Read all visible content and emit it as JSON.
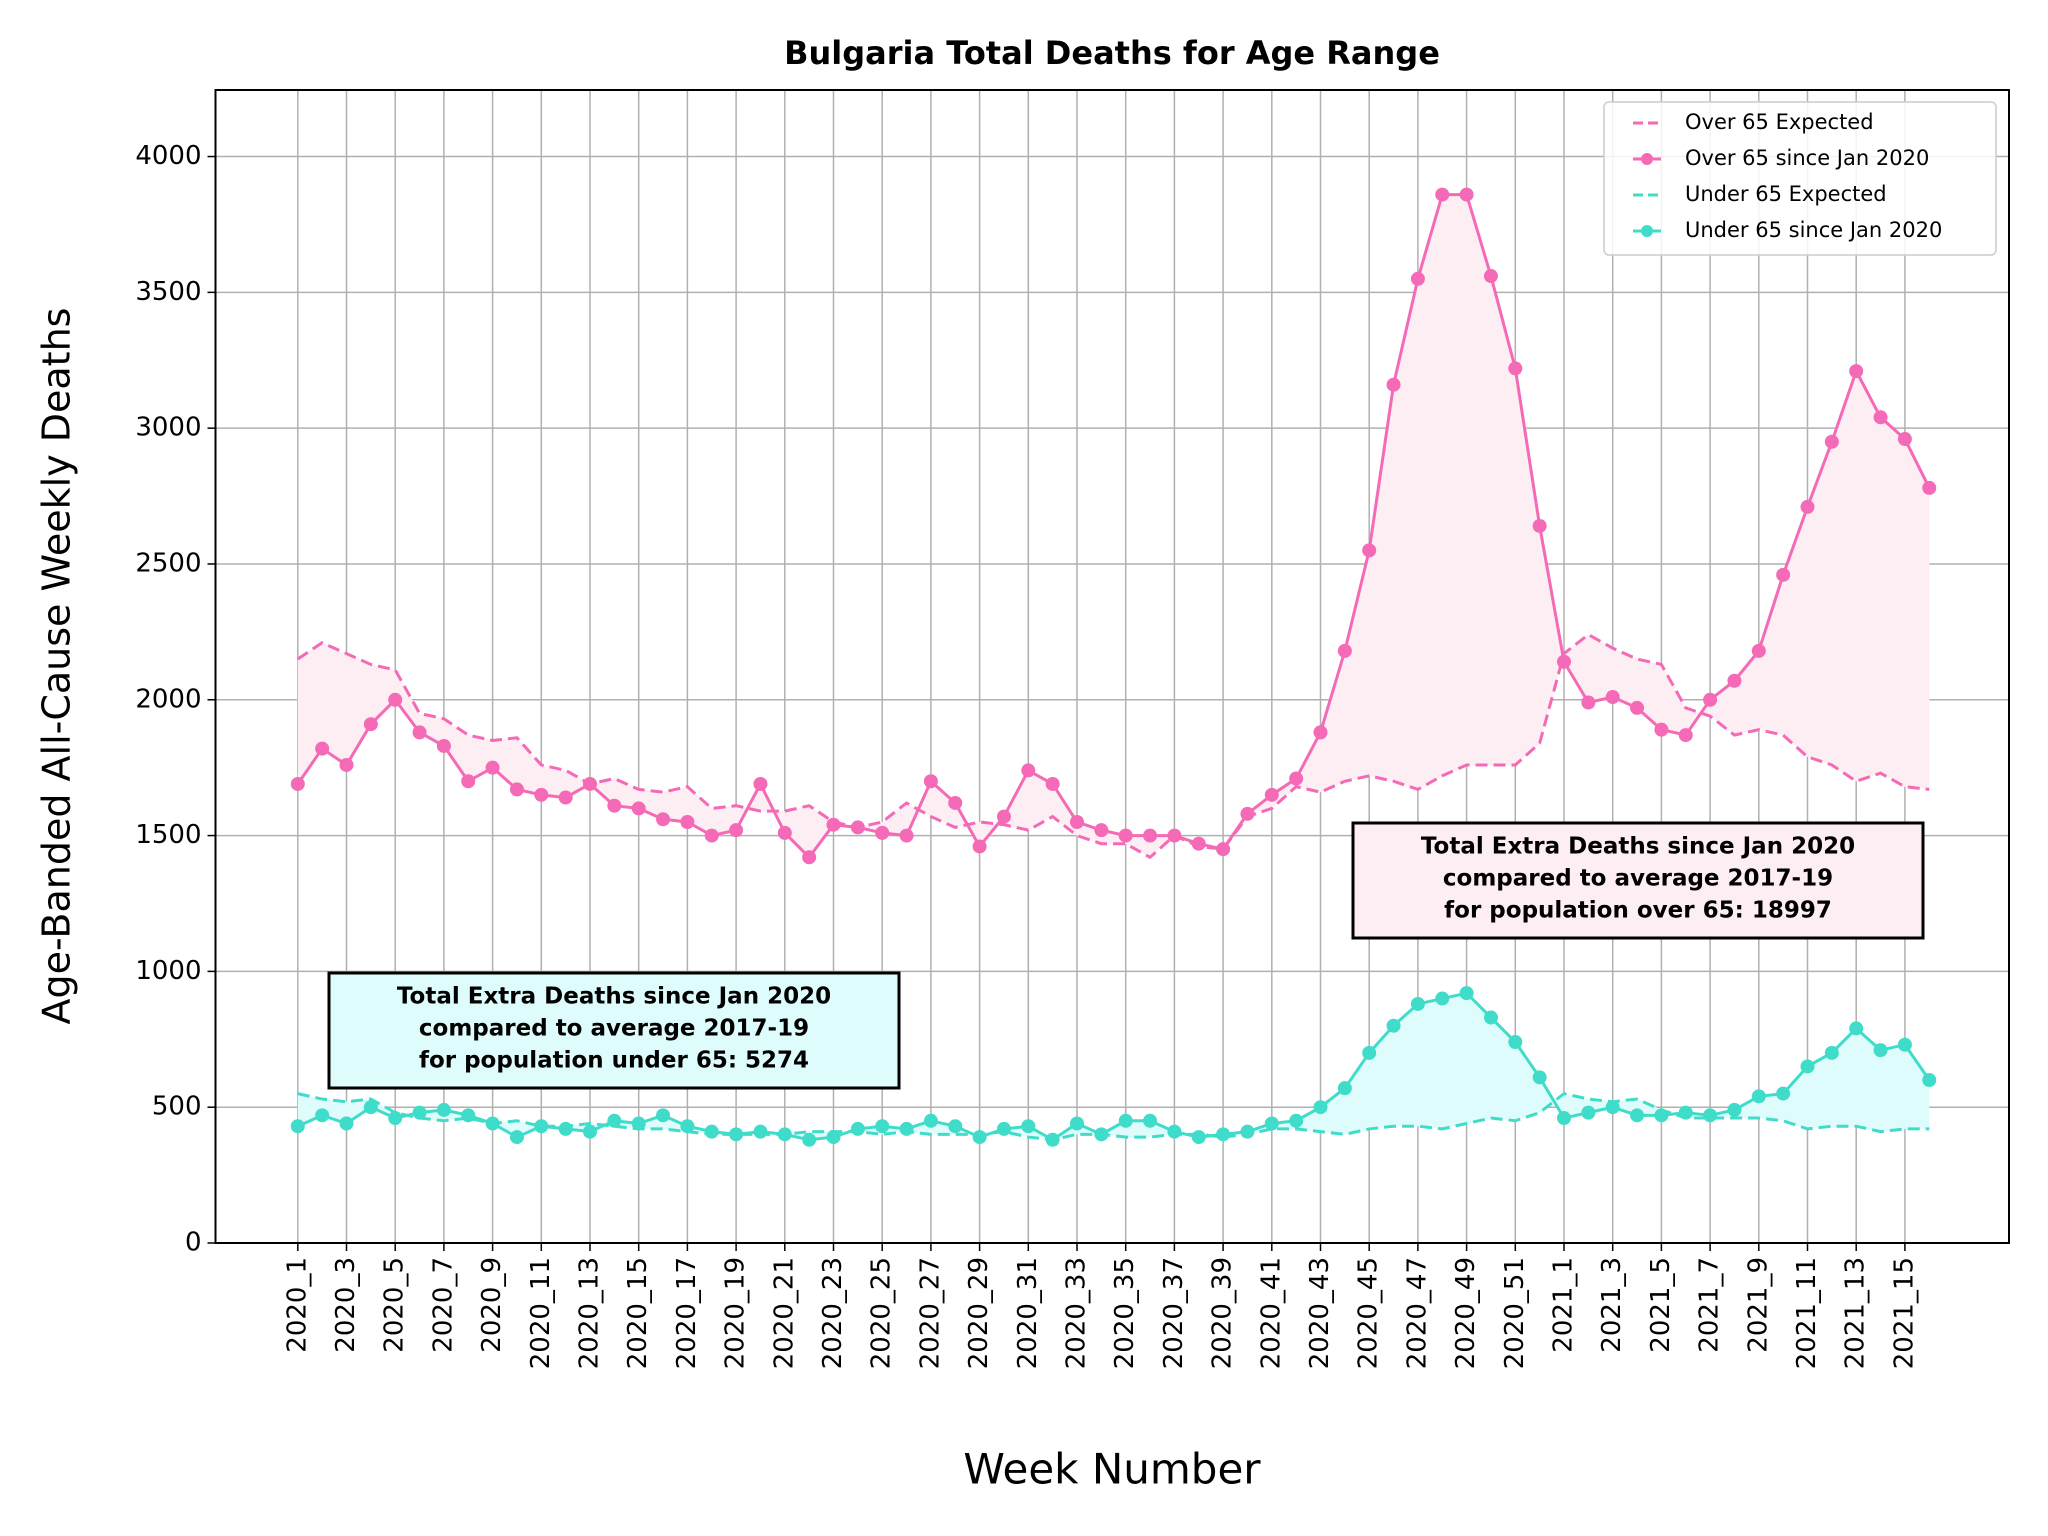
{
  "chart_data": {
    "type": "line",
    "title": "Bulgaria Total Deaths for Age Range",
    "xlabel": "Week Number",
    "ylabel": "Age-Banded All-Cause Weekly Deaths",
    "categories": [
      "2020_1",
      null,
      "2020_3",
      null,
      "2020_5",
      null,
      "2020_7",
      null,
      "2020_9",
      null,
      "2020_11",
      null,
      "2020_13",
      null,
      "2020_15",
      null,
      "2020_17",
      null,
      "2020_19",
      null,
      "2020_21",
      null,
      "2020_23",
      null,
      "2020_25",
      null,
      "2020_27",
      null,
      "2020_29",
      null,
      "2020_31",
      null,
      "2020_33",
      null,
      "2020_35",
      null,
      "2020_37",
      null,
      "2020_39",
      null,
      "2020_41",
      null,
      "2020_43",
      null,
      "2020_45",
      null,
      "2020_47",
      null,
      "2020_49",
      null,
      "2020_51",
      null,
      "2021_1",
      null,
      "2021_3",
      null,
      "2021_5",
      null,
      "2021_7",
      null,
      "2021_9",
      null,
      "2021_11",
      null,
      "2021_13",
      null,
      "2021_15",
      null
    ],
    "ylim": [
      0,
      4245
    ],
    "yticks": [
      0,
      500,
      1000,
      1500,
      2000,
      2500,
      3000,
      3500,
      4000
    ],
    "grid": true,
    "legend": "upper right",
    "series": [
      {
        "name": "Over 65 Expected",
        "color": "#f46ab6",
        "linestyle": "dashed",
        "marker": false,
        "values": [
          2150,
          2210,
          2170,
          2130,
          2110,
          1950,
          1930,
          1870,
          1850,
          1860,
          1760,
          1740,
          1690,
          1710,
          1670,
          1660,
          1680,
          1600,
          1610,
          1590,
          1590,
          1610,
          1550,
          1530,
          1550,
          1620,
          1570,
          1530,
          1550,
          1540,
          1520,
          1570,
          1500,
          1470,
          1470,
          1420,
          1500,
          1460,
          1450,
          1570,
          1600,
          1680,
          1660,
          1700,
          1720,
          1700,
          1670,
          1720,
          1760,
          1760,
          1760,
          1840,
          2170,
          2240,
          2190,
          2150,
          2130,
          1970,
          1940,
          1870,
          1890,
          1870,
          1790,
          1760,
          1700,
          1730,
          1680,
          1670
        ]
      },
      {
        "name": "Over 65 since Jan 2020",
        "color": "#f46ab6",
        "linestyle": "solid",
        "marker": true,
        "fill": "#fdeef3",
        "values": [
          1690,
          1820,
          1760,
          1910,
          2000,
          1880,
          1830,
          1700,
          1750,
          1670,
          1650,
          1640,
          1690,
          1610,
          1600,
          1560,
          1550,
          1500,
          1520,
          1690,
          1510,
          1420,
          1540,
          1530,
          1510,
          1500,
          1700,
          1620,
          1460,
          1570,
          1740,
          1690,
          1550,
          1520,
          1500,
          1500,
          1500,
          1470,
          1450,
          1580,
          1650,
          1710,
          1880,
          2180,
          2550,
          3160,
          3550,
          3860,
          3860,
          3560,
          3220,
          2640,
          2140,
          1990,
          2010,
          1970,
          1890,
          1870,
          2000,
          2070,
          2180,
          2460,
          2710,
          2950,
          3210,
          3040,
          2960,
          2780
        ]
      },
      {
        "name": "Under 65 Expected",
        "color": "#40dcca",
        "linestyle": "dashed",
        "marker": false,
        "values": [
          550,
          530,
          520,
          530,
          480,
          460,
          450,
          460,
          440,
          450,
          430,
          430,
          440,
          430,
          420,
          420,
          410,
          400,
          400,
          400,
          400,
          410,
          410,
          410,
          400,
          410,
          400,
          400,
          400,
          410,
          390,
          380,
          400,
          400,
          390,
          390,
          400,
          400,
          390,
          400,
          420,
          420,
          410,
          400,
          420,
          430,
          430,
          420,
          440,
          460,
          450,
          480,
          550,
          530,
          520,
          530,
          490,
          460,
          460,
          460,
          460,
          450,
          420,
          430,
          430,
          410,
          420,
          420
        ]
      },
      {
        "name": "Under 65 since Jan 2020",
        "color": "#40dcca",
        "linestyle": "solid",
        "marker": true,
        "fill": "#dffcfd",
        "values": [
          430,
          470,
          440,
          500,
          460,
          480,
          490,
          470,
          440,
          390,
          430,
          420,
          410,
          450,
          440,
          470,
          430,
          410,
          400,
          410,
          400,
          380,
          390,
          420,
          430,
          420,
          450,
          430,
          390,
          420,
          430,
          380,
          440,
          400,
          450,
          450,
          410,
          390,
          400,
          410,
          440,
          450,
          500,
          570,
          700,
          800,
          880,
          900,
          920,
          830,
          740,
          610,
          460,
          480,
          500,
          470,
          470,
          480,
          470,
          490,
          540,
          550,
          650,
          700,
          790,
          710,
          730,
          600
        ]
      }
    ],
    "annotations": [
      {
        "lines": [
          "Total Extra Deaths since Jan 2020",
          "compared to average 2017-19",
          "for population over 65: 18997"
        ],
        "color": "#fdeef3"
      },
      {
        "lines": [
          "Total Extra Deaths since Jan 2020",
          "compared to average 2017-19",
          "for population under 65: 5274"
        ],
        "color": "#dffcfd"
      }
    ]
  }
}
